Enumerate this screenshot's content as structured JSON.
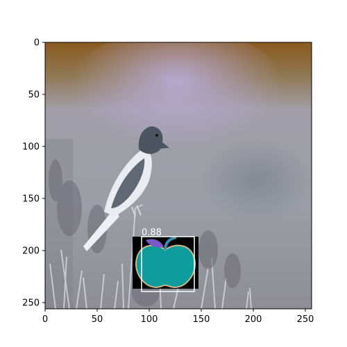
{
  "figure": {
    "x_ticks": [
      "0",
      "50",
      "100",
      "150",
      "200",
      "250"
    ],
    "y_ticks": [
      "0",
      "50",
      "100",
      "150",
      "200",
      "250"
    ],
    "image_extent": [
      256,
      256
    ]
  },
  "photo": {
    "subject": "bird-perched-on-plant-stem",
    "background_colors": {
      "top_band": "#8a5a1f",
      "mid": "#9e9fb2",
      "haze": "#b7acd4",
      "bottom": "#8c8c94"
    }
  },
  "detection": {
    "label": "0.88",
    "box_color": "#ffffff",
    "icon": "apple-icon",
    "icon_fill": "#0f9c9c",
    "icon_leaf": "#7a58c6",
    "icon_outline": "#cdb88a",
    "icon_background": "#000000"
  }
}
